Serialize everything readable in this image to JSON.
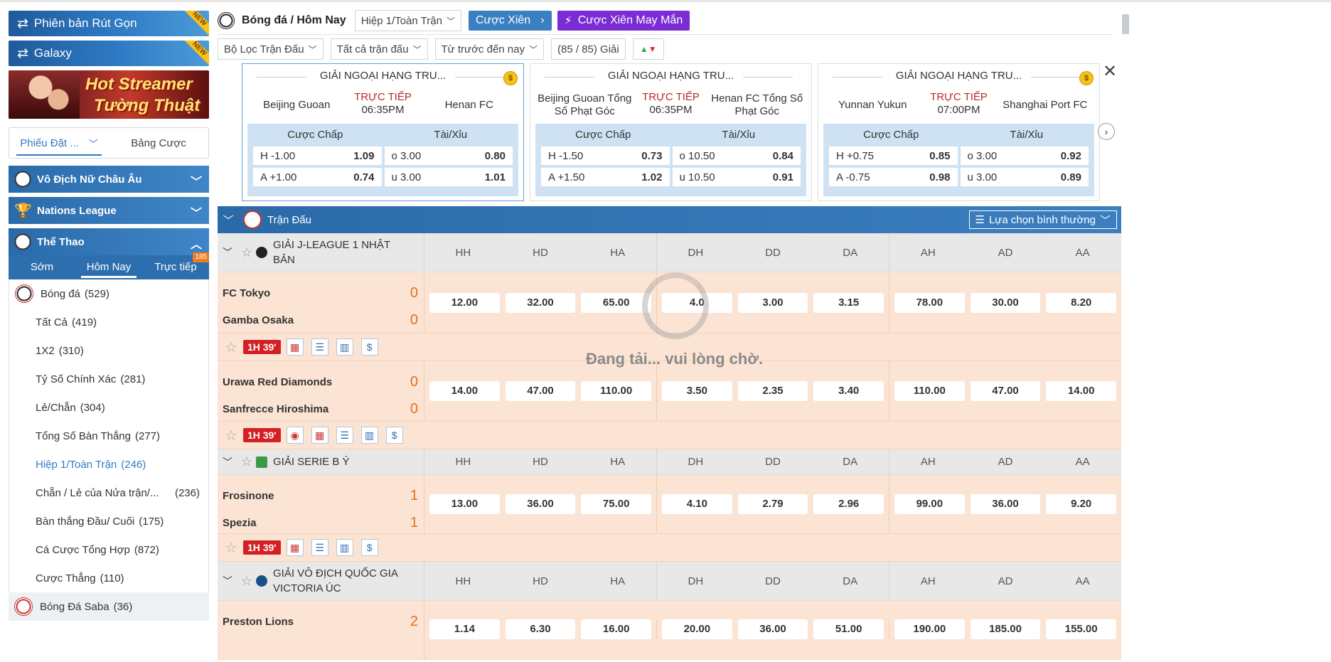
{
  "sidebar": {
    "promo1": "Phiên bản Rút Gọn",
    "promo2": "Galaxy",
    "badge": "NEW",
    "banner_line1": "Hot Streamer",
    "banner_line2": "Tường Thuật",
    "slip_tab1": "Phiếu Đặt ...",
    "slip_tab2": "Bảng Cược",
    "section1": "Vô Địch Nữ Châu Âu",
    "section2": "Nations League",
    "section3": "Thể Thao",
    "sport_tabs": [
      "Sớm",
      "Hôm Nay",
      "Trực tiếp"
    ],
    "live_count": "185",
    "menu": [
      {
        "label": "Bóng đá",
        "count": "(529)"
      },
      {
        "label": "Tất Cả",
        "count": "(419)"
      },
      {
        "label": "1X2",
        "count": "(310)"
      },
      {
        "label": "Tỷ Số Chính Xác",
        "count": "(281)"
      },
      {
        "label": "Lẻ/Chẵn",
        "count": "(304)"
      },
      {
        "label": "Tổng Số Bàn Thắng",
        "count": "(277)"
      },
      {
        "label": "Hiệp 1/Toàn Trận",
        "count": "(246)"
      },
      {
        "label": "Chẵn / Lẻ của Nửa trận/...",
        "count": "(236)"
      },
      {
        "label": "Bàn thắng Đầu/ Cuối",
        "count": "(175)"
      },
      {
        "label": "Cá Cược Tổng Hợp",
        "count": "(872)"
      },
      {
        "label": "Cược Thẳng",
        "count": "(110)"
      }
    ],
    "saba": {
      "label": "Bóng Đá Saba",
      "count": "(36)"
    }
  },
  "topbar": {
    "title": "Bóng đá / Hôm Nay",
    "market": "Hiệp 1/Toàn Trận",
    "parlay": "Cược Xiên",
    "lucky": "Cược Xiên May Mắn"
  },
  "filters": {
    "f1": "Bộ Lọc Trận Đấu",
    "f2": "Tất cả trận đấu",
    "f3": "Từ trước đến nay",
    "f4": "(85 / 85) Giải"
  },
  "cards": [
    {
      "league": "GIẢI NGOẠI HẠNG TRU...",
      "home": "Beijing Guoan",
      "away": "Henan FC",
      "status": "TRỰC TIẾP",
      "time": "06:35PM",
      "hdp_label": "Cược Chấp",
      "ou_label": "Tài/Xỉu",
      "h_line": "-1.00",
      "h_odd": "1.09",
      "a_line": "+1.00",
      "a_odd": "0.74",
      "o_line": "3.00",
      "o_odd": "0.80",
      "u_line": "3.00",
      "u_odd": "1.01"
    },
    {
      "league": "GIẢI NGOẠI HẠNG TRU...",
      "home": "Beijing Guoan Tổng Số Phạt Góc",
      "away": "Henan FC Tổng Số Phạt Góc",
      "status": "TRỰC TIẾP",
      "time": "06:35PM",
      "hdp_label": "Cược Chấp",
      "ou_label": "Tài/Xỉu",
      "h_line": "-1.50",
      "h_odd": "0.73",
      "a_line": "+1.50",
      "a_odd": "1.02",
      "o_line": "10.50",
      "o_odd": "0.84",
      "u_line": "10.50",
      "u_odd": "0.91"
    },
    {
      "league": "GIẢI NGOẠI HẠNG TRU...",
      "home": "Yunnan Yukun",
      "away": "Shanghai Port FC",
      "status": "TRỰC TIẾP",
      "time": "07:00PM",
      "hdp_label": "Cược Chấp",
      "ou_label": "Tài/Xỉu",
      "h_line": "+0.75",
      "h_odd": "0.85",
      "a_line": "-0.75",
      "a_odd": "0.98",
      "o_line": "3.00",
      "o_odd": "0.92",
      "u_line": "3.00",
      "u_odd": "0.89"
    }
  ],
  "table": {
    "header": "Trận Đấu",
    "option": "Lựa chọn bình thường",
    "cols": [
      "HH",
      "HD",
      "HA",
      "DH",
      "DD",
      "DA",
      "AH",
      "AD",
      "AA"
    ],
    "loading": "Đang tải... vui lòng chờ.",
    "leagues": [
      {
        "name_line1": "GIẢI J-LEAGUE 1 NHẬT",
        "name_line2": "BẢN"
      },
      {
        "name_line1": "GIẢI SERIE B Ý",
        "name_line2": ""
      },
      {
        "name_line1": "GIẢI VÔ ĐỊCH QUỐC GIA",
        "name_line2": "VICTORIA ÚC"
      }
    ],
    "matches": [
      {
        "home": "FC Tokyo",
        "away": "Gamba Osaka",
        "hs": "0",
        "as": "0",
        "time": "1H 39'",
        "odds": [
          "12.00",
          "32.00",
          "65.00",
          "4.0",
          "3.00",
          "3.15",
          "78.00",
          "30.00",
          "8.20"
        ]
      },
      {
        "home": "Urawa Red Diamonds",
        "away": "Sanfrecce Hiroshima",
        "hs": "0",
        "as": "0",
        "time": "1H 39'",
        "odds": [
          "14.00",
          "47.00",
          "110.00",
          "3.50",
          "2.35",
          "3.40",
          "110.00",
          "47.00",
          "14.00"
        ]
      },
      {
        "home": "Frosinone",
        "away": "Spezia",
        "hs": "1",
        "as": "1",
        "time": "1H 39'",
        "odds": [
          "13.00",
          "36.00",
          "75.00",
          "4.10",
          "2.79",
          "2.96",
          "99.00",
          "36.00",
          "9.20"
        ]
      },
      {
        "home": "Preston Lions",
        "away": "",
        "hs": "2",
        "as": "",
        "time": "",
        "odds": [
          "1.14",
          "6.30",
          "16.00",
          "20.00",
          "36.00",
          "51.00",
          "190.00",
          "185.00",
          "155.00"
        ]
      }
    ]
  }
}
